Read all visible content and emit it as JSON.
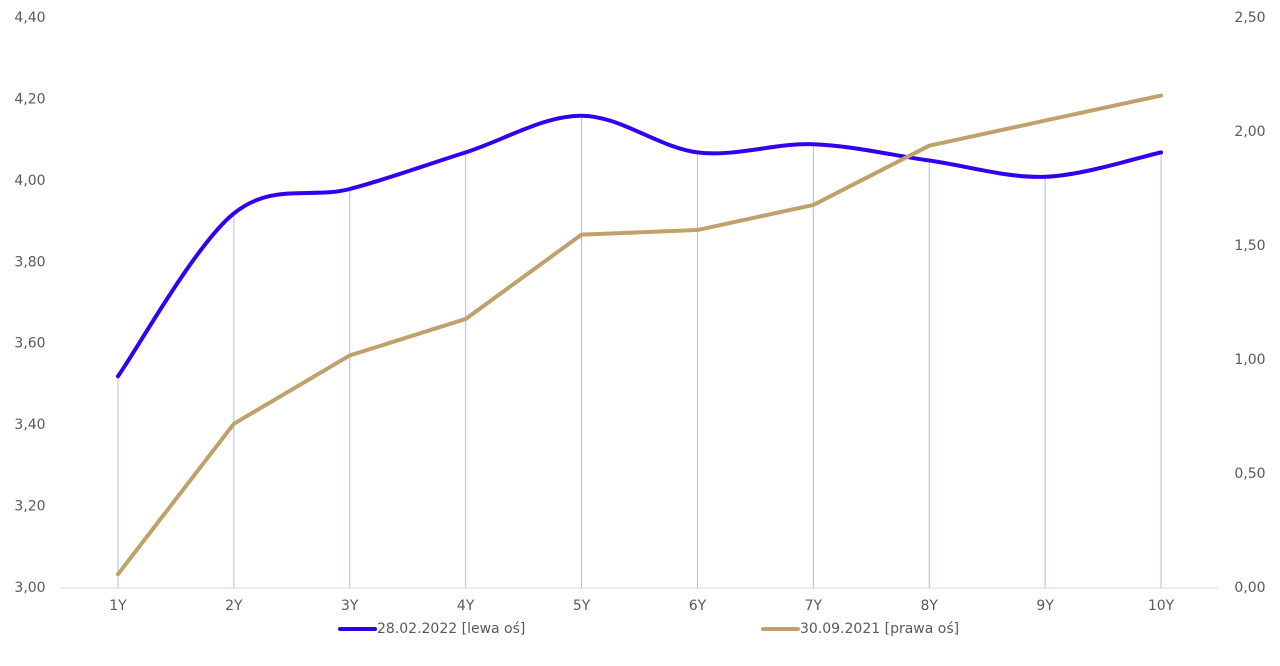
{
  "chart_data": {
    "type": "line",
    "categories": [
      "1Y",
      "2Y",
      "3Y",
      "4Y",
      "5Y",
      "6Y",
      "7Y",
      "8Y",
      "9Y",
      "10Y"
    ],
    "series": [
      {
        "name": "28.02.2022 [lewa oś]",
        "color": "#3300ee",
        "smooth": true,
        "drop_lines": true,
        "values": [
          3.52,
          3.92,
          3.98,
          4.07,
          4.16,
          4.07,
          4.09,
          4.05,
          4.01,
          4.07
        ]
      },
      {
        "name": "30.09.2021 [prawa oś]",
        "color": "#bfa16a",
        "axis": "y2",
        "values": [
          0.06,
          0.72,
          1.02,
          1.18,
          1.55,
          1.57,
          1.68,
          1.94,
          2.05,
          2.16
        ]
      }
    ],
    "ylim": [
      3.0,
      4.4
    ],
    "yticks": [
      {
        "value": 3.0,
        "label": "3,00"
      },
      {
        "value": 3.2,
        "label": "3,20"
      },
      {
        "value": 3.4,
        "label": "3,40"
      },
      {
        "value": 3.6,
        "label": "3,60"
      },
      {
        "value": 3.8,
        "label": "3,80"
      },
      {
        "value": 4.0,
        "label": "4,00"
      },
      {
        "value": 4.2,
        "label": "4,20"
      },
      {
        "value": 4.4,
        "label": "4,40"
      }
    ],
    "y2lim": [
      0,
      2.5
    ],
    "y2ticks": [
      {
        "value": 0,
        "label": "0,00"
      },
      {
        "value": 0.5,
        "label": "0,50"
      },
      {
        "value": 1.0,
        "label": "1,00"
      },
      {
        "value": 1.5,
        "label": "1,50"
      },
      {
        "value": 2.0,
        "label": "2,00"
      },
      {
        "value": 2.5,
        "label": "2,50"
      }
    ],
    "legend": "bottom"
  }
}
